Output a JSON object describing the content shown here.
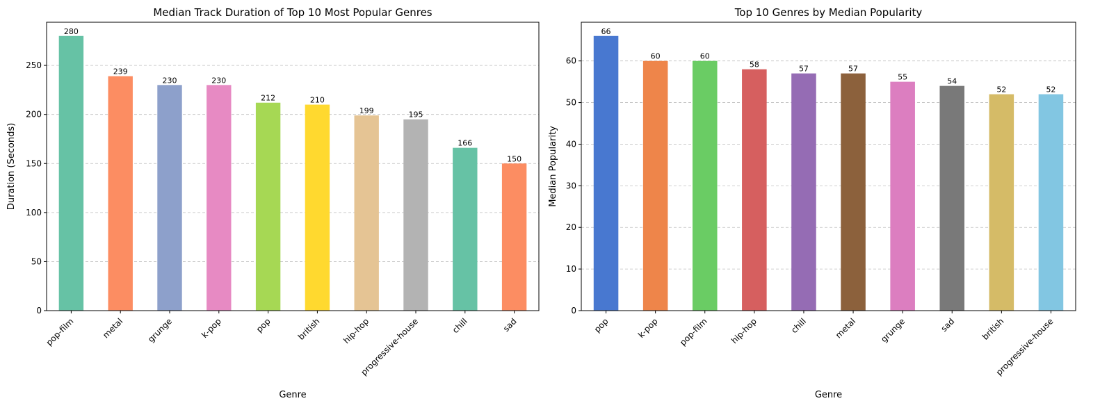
{
  "chart_data": [
    {
      "type": "bar",
      "title": "Median Track Duration of Top 10 Most Popular Genres",
      "xlabel": "Genre",
      "ylabel": "Duration (Seconds)",
      "categories": [
        "pop-film",
        "metal",
        "grunge",
        "k-pop",
        "pop",
        "british",
        "hip-hop",
        "progressive-house",
        "chill",
        "sad"
      ],
      "values": [
        280,
        239,
        230,
        230,
        212,
        210,
        199,
        195,
        166,
        150
      ],
      "data_labels": [
        "280",
        "239",
        "230",
        "230",
        "212",
        "210",
        "199",
        "195",
        "166",
        "150"
      ],
      "colors": [
        "#66c2a5",
        "#fc8d62",
        "#8da0cb",
        "#e78ac3",
        "#a6d854",
        "#ffd92f",
        "#e5c494",
        "#b3b3b3",
        "#66c2a5",
        "#fc8d62"
      ],
      "ylim": [
        0,
        294
      ],
      "yticks": [
        0,
        50,
        100,
        150,
        200,
        250
      ],
      "grid": "y-dashed"
    },
    {
      "type": "bar",
      "title": "Top 10 Genres by Median Popularity",
      "xlabel": "Genre",
      "ylabel": "Median Popularity",
      "categories": [
        "pop",
        "k-pop",
        "pop-film",
        "hip-hop",
        "chill",
        "metal",
        "grunge",
        "sad",
        "british",
        "progressive-house"
      ],
      "values": [
        66,
        60,
        60,
        58,
        57,
        57,
        55,
        54,
        52,
        52
      ],
      "data_labels": [
        "66",
        "60",
        "60",
        "58",
        "57",
        "57",
        "55",
        "54",
        "52",
        "52"
      ],
      "colors": [
        "#4878d0",
        "#ee854a",
        "#6acc64",
        "#d65f5f",
        "#956cb4",
        "#8c613c",
        "#dc7ec0",
        "#797979",
        "#d5bb67",
        "#82c6e2"
      ],
      "ylim": [
        0,
        69.3
      ],
      "yticks": [
        0,
        10,
        20,
        30,
        40,
        50,
        60
      ],
      "grid": "y-dashed"
    }
  ]
}
